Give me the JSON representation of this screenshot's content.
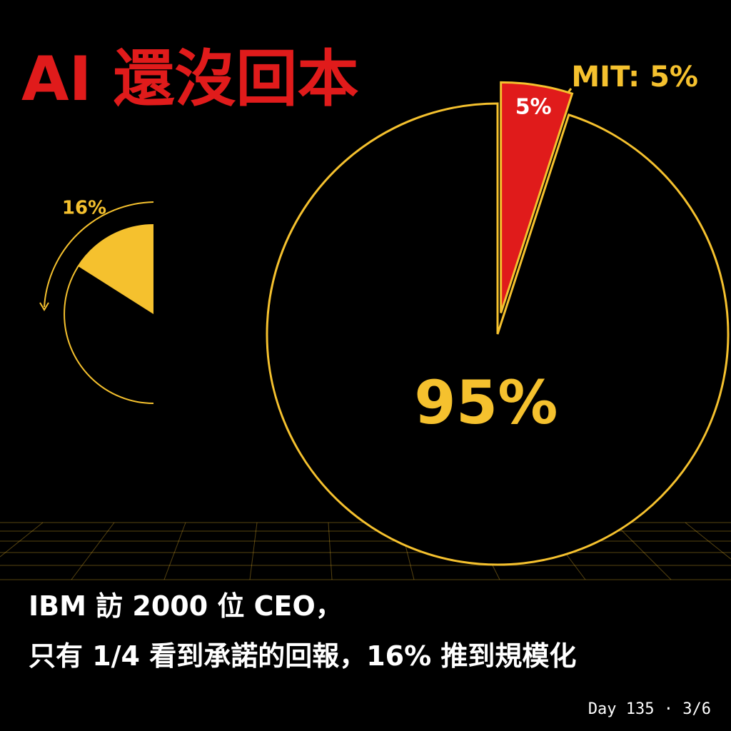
{
  "title": "AI 還沒回本",
  "chart_data": [
    {
      "type": "pie",
      "values": [
        5,
        95
      ],
      "value_labels": [
        "5%",
        "95%"
      ],
      "colors": [
        "#e01b1b",
        "#000000"
      ],
      "outline": "#f5c12e",
      "annotation": "MIT: 5%"
    },
    {
      "type": "pie",
      "values": [
        16
      ],
      "value_labels": [
        "16%"
      ],
      "colors": [
        "#f5c12e"
      ],
      "outline": "#f5c12e"
    }
  ],
  "caption": [
    "IBM 訪 2000 位 CEO，",
    "只有 1/4 看到承諾的回報，16% 推到規模化"
  ],
  "footer": "Day 135 · 3/6"
}
